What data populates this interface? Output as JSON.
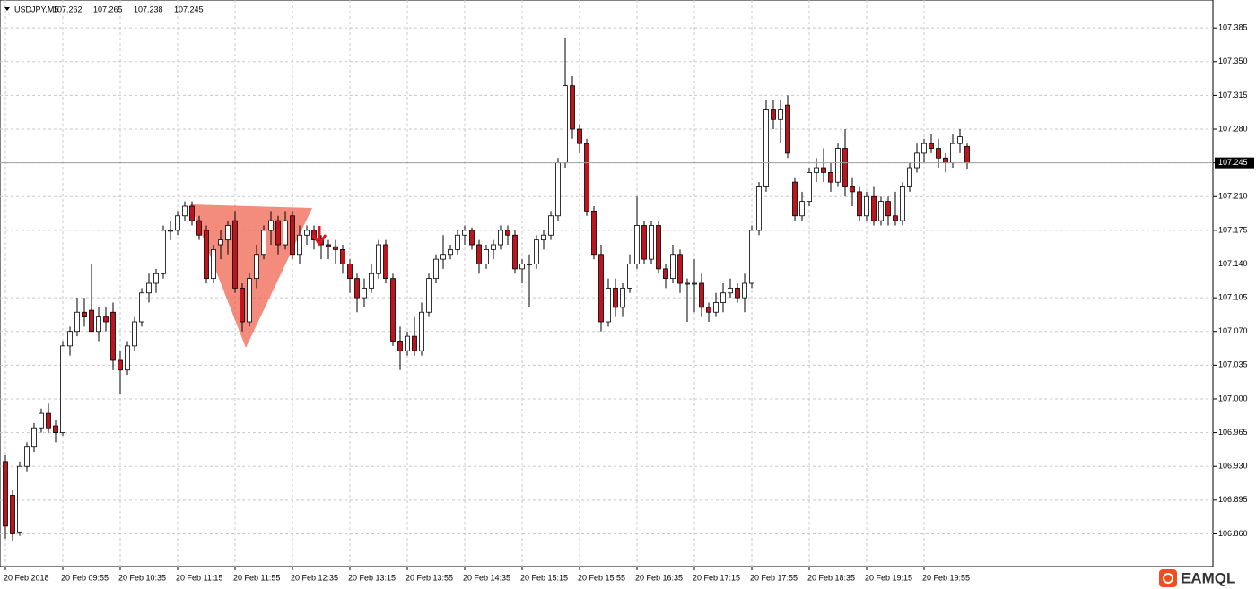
{
  "chart_data": {
    "type": "candlestick",
    "symbol": "USDJPY,M5",
    "header_ohlc": [
      107.262,
      107.265,
      107.238,
      107.245
    ],
    "last_price": 107.245,
    "watermark": "EAMQL",
    "up_color": "#ffffff",
    "down_color": "#c0141c",
    "grid": true,
    "ylim": [
      106.826,
      107.414
    ],
    "yticks": [
      {
        "value": 106.86,
        "label": "106.860"
      },
      106.895,
      {
        "value": 106.93,
        "label": "106.930"
      },
      106.965,
      {
        "value": 107.0,
        "label": "107.000"
      },
      107.035,
      {
        "value": 107.07,
        "label": "107.070"
      },
      107.105,
      {
        "value": 107.14,
        "label": "107.140"
      },
      107.175,
      {
        "value": 107.21,
        "label": "107.210"
      },
      107.245,
      {
        "value": 107.28,
        "label": "107.280"
      },
      107.315,
      {
        "value": 107.35,
        "label": "107.350"
      },
      107.385
    ],
    "categories": [
      "20 Feb 2018",
      null,
      null,
      null,
      null,
      null,
      null,
      null,
      "20 Feb 09:55",
      null,
      null,
      null,
      null,
      null,
      null,
      null,
      "20 Feb 10:35",
      null,
      null,
      null,
      null,
      null,
      null,
      null,
      "20 Feb 11:15",
      null,
      null,
      null,
      null,
      null,
      null,
      null,
      "20 Feb 11:55",
      null,
      null,
      null,
      null,
      null,
      null,
      null,
      "20 Feb 12:35",
      null,
      null,
      null,
      null,
      null,
      null,
      null,
      "20 Feb 13:15",
      null,
      null,
      null,
      null,
      null,
      null,
      null,
      "20 Feb 13:55",
      null,
      null,
      null,
      null,
      null,
      null,
      null,
      "20 Feb 14:35",
      null,
      null,
      null,
      null,
      null,
      null,
      null,
      "20 Feb 15:15",
      null,
      null,
      null,
      null,
      null,
      null,
      null,
      "20 Feb 15:55",
      null,
      null,
      null,
      null,
      null,
      null,
      null,
      "20 Feb 16:35",
      null,
      null,
      null,
      null,
      null,
      null,
      null,
      "20 Feb 17:15",
      null,
      null,
      null,
      null,
      null,
      null,
      null,
      "20 Feb 17:55",
      null,
      null,
      null,
      null,
      null,
      null,
      null,
      "20 Feb 18:35",
      null,
      null,
      null,
      null,
      null,
      null,
      null,
      "20 Feb 19:15",
      null,
      null,
      null,
      null,
      null,
      null,
      null,
      "20 Feb 19:55",
      null,
      null,
      null,
      null,
      null,
      null
    ],
    "ohlc": [
      [
        106.935,
        106.942,
        106.855,
        106.868
      ],
      [
        106.9,
        106.905,
        106.852,
        106.86
      ],
      [
        106.862,
        106.935,
        106.858,
        106.93
      ],
      [
        106.93,
        106.955,
        106.925,
        106.95
      ],
      [
        106.95,
        106.975,
        106.945,
        106.97
      ],
      [
        106.97,
        106.99,
        106.965,
        106.985
      ],
      [
        106.985,
        106.995,
        106.965,
        106.97
      ],
      [
        106.972,
        106.978,
        106.955,
        106.965
      ],
      [
        106.965,
        107.06,
        106.962,
        107.055
      ],
      [
        107.055,
        107.075,
        107.045,
        107.07
      ],
      [
        107.07,
        107.105,
        107.065,
        107.09
      ],
      [
        107.09,
        107.105,
        107.075,
        107.085
      ],
      [
        107.092,
        107.14,
        107.07,
        107.07
      ],
      [
        107.07,
        107.095,
        107.06,
        107.085
      ],
      [
        107.085,
        107.095,
        107.07,
        107.08
      ],
      [
        107.09,
        107.1,
        107.03,
        107.04
      ],
      [
        107.04,
        107.05,
        107.005,
        107.03
      ],
      [
        107.03,
        107.06,
        107.025,
        107.055
      ],
      [
        107.055,
        107.085,
        107.05,
        107.08
      ],
      [
        107.08,
        107.115,
        107.075,
        107.11
      ],
      [
        107.11,
        107.13,
        107.1,
        107.12
      ],
      [
        107.12,
        107.135,
        107.11,
        107.13
      ],
      [
        107.13,
        107.18,
        107.125,
        107.175
      ],
      [
        107.175,
        107.185,
        107.165,
        107.175
      ],
      [
        107.175,
        107.195,
        107.17,
        107.19
      ],
      [
        107.19,
        107.205,
        107.185,
        107.2
      ],
      [
        107.2,
        107.205,
        107.18,
        107.185
      ],
      [
        107.185,
        107.19,
        107.165,
        107.17
      ],
      [
        107.175,
        107.18,
        107.12,
        107.125
      ],
      [
        107.125,
        107.16,
        107.12,
        107.155
      ],
      [
        107.16,
        107.175,
        107.145,
        107.165
      ],
      [
        107.165,
        107.185,
        107.15,
        107.18
      ],
      [
        107.185,
        107.195,
        107.11,
        107.115
      ],
      [
        107.115,
        107.12,
        107.07,
        107.08
      ],
      [
        107.08,
        107.13,
        107.075,
        107.125
      ],
      [
        107.125,
        107.16,
        107.115,
        107.15
      ],
      [
        107.15,
        107.18,
        107.145,
        107.175
      ],
      [
        107.175,
        107.195,
        107.16,
        107.185
      ],
      [
        107.185,
        107.19,
        107.15,
        107.16
      ],
      [
        107.16,
        107.195,
        107.155,
        107.185
      ],
      [
        107.19,
        107.195,
        107.145,
        107.15
      ],
      [
        107.15,
        107.18,
        107.14,
        107.17
      ],
      [
        107.17,
        107.18,
        107.16,
        107.175
      ],
      [
        107.175,
        107.18,
        107.155,
        107.165
      ],
      [
        107.165,
        107.17,
        107.145,
        107.16
      ],
      [
        107.16,
        107.165,
        107.145,
        107.158
      ],
      [
        107.158,
        107.165,
        107.14,
        107.155
      ],
      [
        107.155,
        107.16,
        107.13,
        107.14
      ],
      [
        107.14,
        107.145,
        107.11,
        107.125
      ],
      [
        107.125,
        107.13,
        107.09,
        107.105
      ],
      [
        107.105,
        107.125,
        107.095,
        107.115
      ],
      [
        107.115,
        107.14,
        107.11,
        107.13
      ],
      [
        107.13,
        107.165,
        107.125,
        107.16
      ],
      [
        107.16,
        107.165,
        107.12,
        107.125
      ],
      [
        107.125,
        107.13,
        107.055,
        107.06
      ],
      [
        107.06,
        107.075,
        107.03,
        107.05
      ],
      [
        107.05,
        107.07,
        107.045,
        107.065
      ],
      [
        107.065,
        107.085,
        107.045,
        107.05
      ],
      [
        107.05,
        107.1,
        107.045,
        107.09
      ],
      [
        107.09,
        107.13,
        107.085,
        107.125
      ],
      [
        107.125,
        107.15,
        107.12,
        107.145
      ],
      [
        107.145,
        107.17,
        107.135,
        107.15
      ],
      [
        107.15,
        107.16,
        107.145,
        107.155
      ],
      [
        107.155,
        107.175,
        107.15,
        107.17
      ],
      [
        107.17,
        107.18,
        107.16,
        107.175
      ],
      [
        107.175,
        107.178,
        107.155,
        107.16
      ],
      [
        107.16,
        107.165,
        107.13,
        107.14
      ],
      [
        107.14,
        107.16,
        107.135,
        107.155
      ],
      [
        107.155,
        107.165,
        107.145,
        107.16
      ],
      [
        107.16,
        107.18,
        107.155,
        107.175
      ],
      [
        107.175,
        107.18,
        107.16,
        107.17
      ],
      [
        107.17,
        107.175,
        107.13,
        107.135
      ],
      [
        107.135,
        107.145,
        107.12,
        107.14
      ],
      [
        107.14,
        107.15,
        107.095,
        107.14
      ],
      [
        107.14,
        107.17,
        107.135,
        107.165
      ],
      [
        107.165,
        107.175,
        107.155,
        107.17
      ],
      [
        107.17,
        107.195,
        107.165,
        107.19
      ],
      [
        107.19,
        107.25,
        107.185,
        107.245
      ],
      [
        107.245,
        107.375,
        107.24,
        107.325
      ],
      [
        107.325,
        107.335,
        107.27,
        107.28
      ],
      [
        107.28,
        107.285,
        107.255,
        107.265
      ],
      [
        107.265,
        107.27,
        107.19,
        107.195
      ],
      [
        107.195,
        107.2,
        107.145,
        107.15
      ],
      [
        107.15,
        107.16,
        107.07,
        107.08
      ],
      [
        107.08,
        107.125,
        107.075,
        107.115
      ],
      [
        107.115,
        107.125,
        107.085,
        107.095
      ],
      [
        107.095,
        107.12,
        107.085,
        107.115
      ],
      [
        107.115,
        107.15,
        107.11,
        107.14
      ],
      [
        107.14,
        107.21,
        107.135,
        107.18
      ],
      [
        107.18,
        107.185,
        107.14,
        107.145
      ],
      [
        107.145,
        107.185,
        107.14,
        107.18
      ],
      [
        107.18,
        107.185,
        107.13,
        107.135
      ],
      [
        107.135,
        107.14,
        107.115,
        107.125
      ],
      [
        107.125,
        107.16,
        107.12,
        107.15
      ],
      [
        107.15,
        107.155,
        107.11,
        107.12
      ],
      [
        107.12,
        107.125,
        107.08,
        107.12
      ],
      [
        107.12,
        107.145,
        107.09,
        107.12
      ],
      [
        107.12,
        107.13,
        107.085,
        107.095
      ],
      [
        107.095,
        107.1,
        107.08,
        107.09
      ],
      [
        107.09,
        107.11,
        107.085,
        107.1
      ],
      [
        107.1,
        107.12,
        107.09,
        107.11
      ],
      [
        107.11,
        107.125,
        107.105,
        107.115
      ],
      [
        107.115,
        107.12,
        107.1,
        107.105
      ],
      [
        107.105,
        107.13,
        107.09,
        107.12
      ],
      [
        107.12,
        107.18,
        107.115,
        107.175
      ],
      [
        107.175,
        107.225,
        107.17,
        107.22
      ],
      [
        107.22,
        107.31,
        107.215,
        107.3
      ],
      [
        107.3,
        107.31,
        107.28,
        107.29
      ],
      [
        107.29,
        107.31,
        107.265,
        107.3
      ],
      [
        107.305,
        107.315,
        107.25,
        107.255
      ],
      [
        107.225,
        107.23,
        107.185,
        107.19
      ],
      [
        107.19,
        107.215,
        107.185,
        107.205
      ],
      [
        107.205,
        107.24,
        107.2,
        107.235
      ],
      [
        107.235,
        107.25,
        107.225,
        107.24
      ],
      [
        107.24,
        107.26,
        107.225,
        107.235
      ],
      [
        107.235,
        107.245,
        107.215,
        107.225
      ],
      [
        107.225,
        107.265,
        107.22,
        107.26
      ],
      [
        107.26,
        107.28,
        107.21,
        107.22
      ],
      [
        107.22,
        107.23,
        107.2,
        107.215
      ],
      [
        107.215,
        107.22,
        107.185,
        107.19
      ],
      [
        107.19,
        107.215,
        107.185,
        107.21
      ],
      [
        107.21,
        107.22,
        107.18,
        107.185
      ],
      [
        107.185,
        107.21,
        107.18,
        107.205
      ],
      [
        107.205,
        107.21,
        107.18,
        107.19
      ],
      [
        107.19,
        107.215,
        107.18,
        107.185
      ],
      [
        107.185,
        107.225,
        107.18,
        107.22
      ],
      [
        107.22,
        107.245,
        107.215,
        107.24
      ],
      [
        107.24,
        107.265,
        107.235,
        107.255
      ],
      [
        107.255,
        107.27,
        107.245,
        107.265
      ],
      [
        107.265,
        107.275,
        107.255,
        107.26
      ],
      [
        107.26,
        107.27,
        107.24,
        107.25
      ],
      [
        107.25,
        107.255,
        107.235,
        107.245
      ],
      [
        107.245,
        107.275,
        107.24,
        107.265
      ],
      [
        107.265,
        107.28,
        107.255,
        107.272
      ],
      [
        107.262,
        107.265,
        107.238,
        107.245
      ]
    ]
  }
}
